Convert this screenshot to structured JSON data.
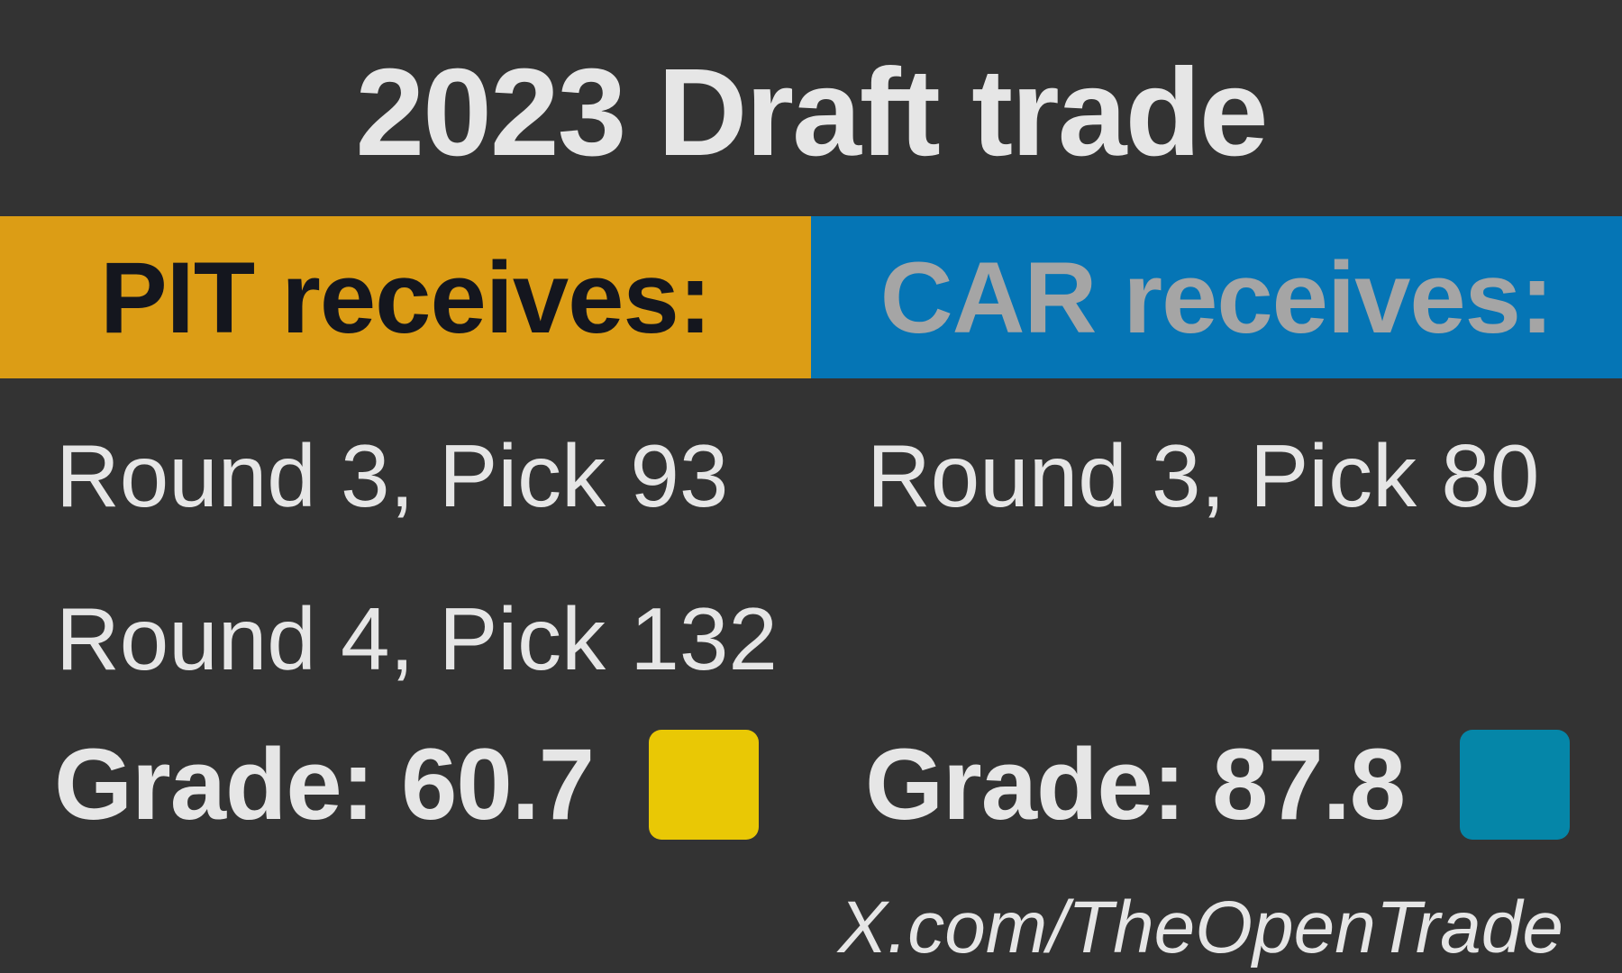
{
  "title": "2023 Draft trade",
  "teams": [
    {
      "header": "PIT receives:",
      "color": "#dc9d15",
      "picks": [
        "Round 3, Pick 93",
        "Round 4, Pick 132"
      ],
      "grade": "Grade: 60.7",
      "grade_color": "#e9c805"
    },
    {
      "header": "CAR receives:",
      "color": "#0575b5",
      "picks": [
        "Round 3, Pick 80"
      ],
      "grade": "Grade: 87.8",
      "grade_color": "#0586a8"
    }
  ],
  "footer": "X.com/TheOpenTrade"
}
